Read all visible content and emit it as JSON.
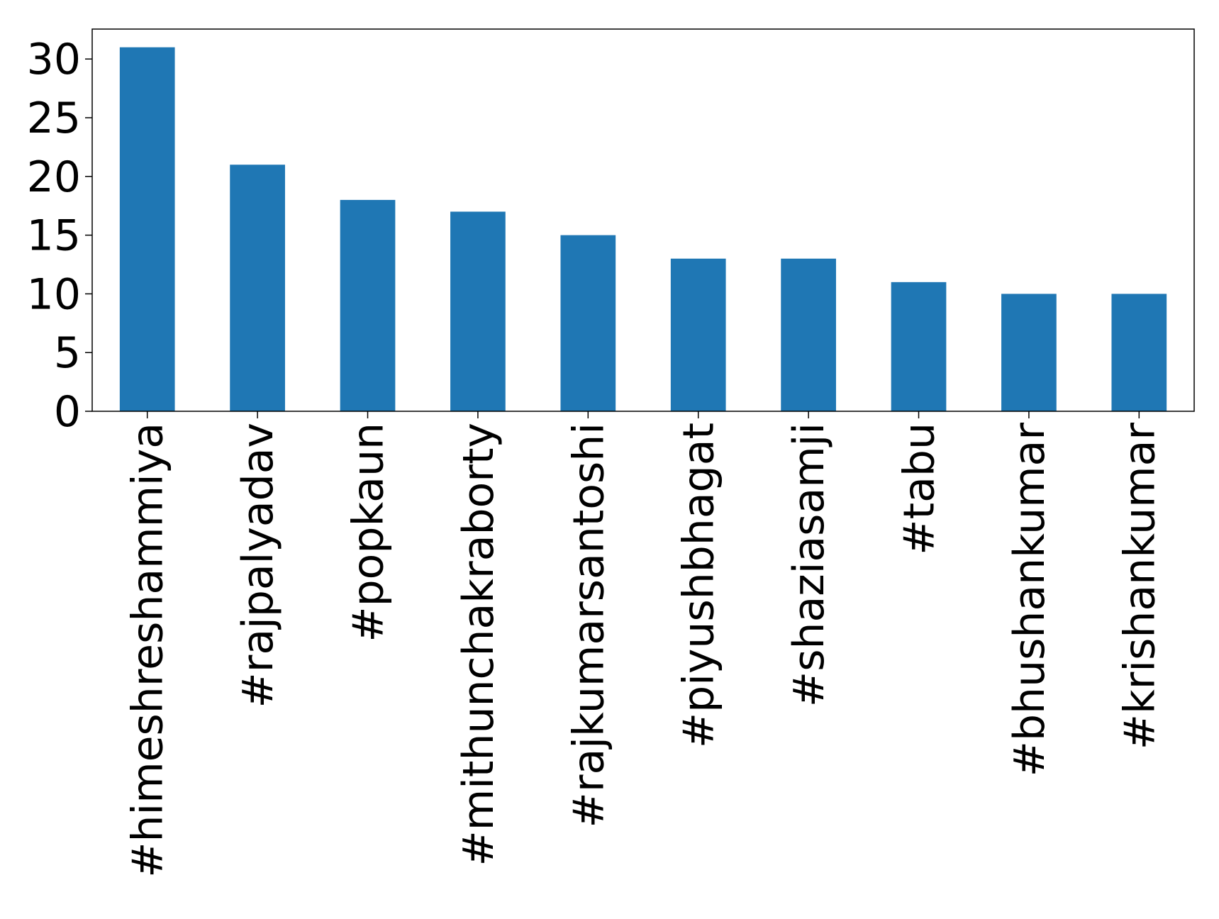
{
  "chart_data": {
    "type": "bar",
    "categories": [
      "#himeshreshammiya",
      "#rajpalyadav",
      "#popkaun",
      "#mithunchakraborty",
      "#rajkumarsantoshi",
      "#piyushbhagat",
      "#shaziasamji",
      "#tabu",
      "#bhushankumar",
      "#krishankumar"
    ],
    "values": [
      31,
      21,
      18,
      17,
      15,
      13,
      13,
      11,
      10,
      10
    ],
    "color": "#1f77b4",
    "ylim": [
      0,
      32.55
    ],
    "yticks": [
      0,
      5,
      10,
      15,
      20,
      25,
      30
    ],
    "grid": false
  }
}
